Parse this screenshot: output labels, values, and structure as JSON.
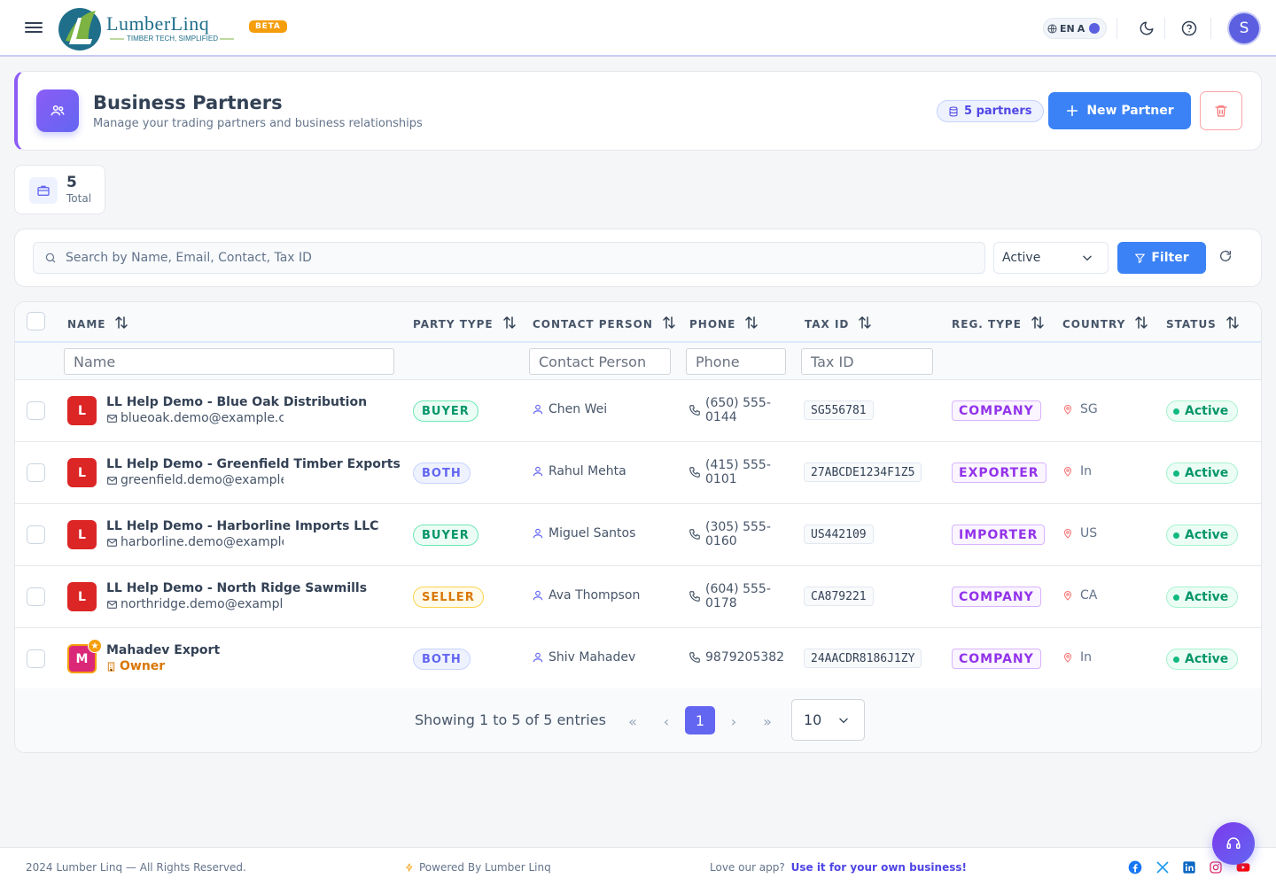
{
  "app": {
    "brand_name": "LumberLinq",
    "brand_tagline": "TIMBER TECH, SIMPLIFIED",
    "beta_label": "BETA",
    "lang_label": "EN",
    "lang_alt": "A",
    "user_initial": "S",
    "accent": "#6366f1",
    "primary": "#3b82f6"
  },
  "header": {
    "title": "Business Partners",
    "subtitle": "Manage your trading partners and business relationships",
    "partners_count_label": "5 partners",
    "new_button": "New Partner"
  },
  "stats": {
    "total_value": "5",
    "total_label": "Total"
  },
  "search": {
    "placeholder": "Search by Name, Email, Contact, Tax ID",
    "status_value": "Active",
    "filter_button": "Filter"
  },
  "table": {
    "columns": [
      "NAME",
      "PARTY TYPE",
      "CONTACT PERSON",
      "PHONE",
      "TAX ID",
      "REG. TYPE",
      "COUNTRY",
      "STATUS"
    ],
    "filters": {
      "name": "Name",
      "contact": "Contact Person",
      "phone": "Phone",
      "tax": "Tax ID"
    },
    "rows": [
      {
        "initial": "L",
        "name": "LL Help Demo - Blue Oak Distribution",
        "email": "blueoak.demo@example.com",
        "party": "BUYER",
        "contact": "Chen Wei",
        "phone_line1": "(650) 555-",
        "phone_line2": "0144",
        "tax_id": "SG556781",
        "reg": "COMPANY",
        "country": "SG",
        "status": "Active"
      },
      {
        "initial": "L",
        "name": "LL Help Demo - Greenfield Timber Exports",
        "email": "greenfield.demo@example.com",
        "party": "BOTH",
        "contact": "Rahul Mehta",
        "phone_line1": "(415) 555-",
        "phone_line2": "0101",
        "tax_id": "27ABCDE1234F1Z5",
        "reg": "EXPORTER",
        "country": "In",
        "status": "Active"
      },
      {
        "initial": "L",
        "name": "LL Help Demo - Harborline Imports LLC",
        "email": "harborline.demo@example.com",
        "party": "BUYER",
        "contact": "Miguel Santos",
        "phone_line1": "(305) 555-",
        "phone_line2": "0160",
        "tax_id": "US442109",
        "reg": "IMPORTER",
        "country": "US",
        "status": "Active"
      },
      {
        "initial": "L",
        "name": "LL Help Demo - North Ridge Sawmills",
        "email": "northridge.demo@example.com",
        "party": "SELLER",
        "contact": "Ava Thompson",
        "phone_line1": "(604) 555-",
        "phone_line2": "0178",
        "tax_id": "CA879221",
        "reg": "COMPANY",
        "country": "CA",
        "status": "Active"
      },
      {
        "initial": "M",
        "name": "Mahadev Export",
        "owner_label": "Owner",
        "party": "BOTH",
        "contact": "Shiv Mahadev",
        "phone": "9879205382",
        "tax_id": "24AACDR8186J1ZY",
        "reg": "COMPANY",
        "country": "In",
        "status": "Active"
      }
    ]
  },
  "pagination": {
    "info": "Showing 1 to 5 of 5 entries",
    "current_page": "1",
    "per_page": "10"
  },
  "footer": {
    "copyright": "2024 Lumber Linq — All Rights Reserved.",
    "powered": "Powered By Lumber Linq",
    "love_text": "Love our app?",
    "love_link": "Use it for your own business!"
  }
}
